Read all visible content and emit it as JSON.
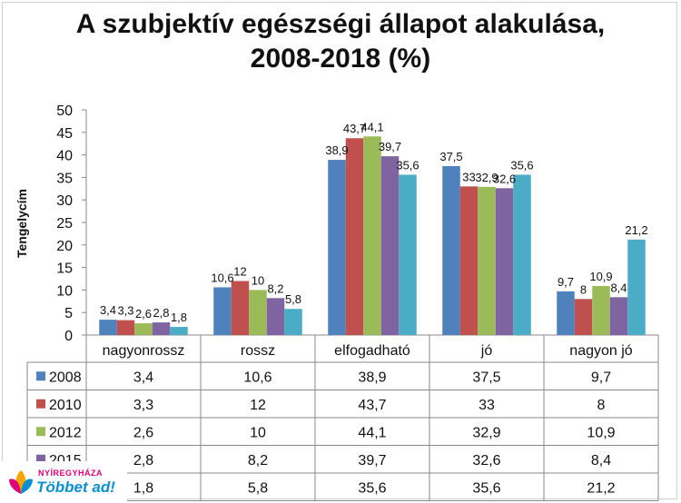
{
  "chart_data": {
    "type": "bar",
    "title": "A szubjektív egészségi állapot alakulása,",
    "subtitle": "2008-2018 (%)",
    "ylabel": "Tengelycím",
    "xlabel": "",
    "ylim": [
      0,
      50
    ],
    "yticks": [
      "0",
      "5",
      "10",
      "15",
      "20",
      "25",
      "30",
      "35",
      "40",
      "45",
      "50"
    ],
    "grid": false,
    "legend_placement": "data-table-left",
    "categories": [
      "nagyonrossz",
      "rossz",
      "elfogadható",
      "jó",
      "nagyon jó"
    ],
    "series": [
      {
        "name": "2008",
        "color": "#4f81bd",
        "values": [
          3.4,
          10.6,
          38.9,
          37.5,
          9.7
        ],
        "labels": [
          "3,4",
          "10,6",
          "38,9",
          "37,5",
          "9,7"
        ]
      },
      {
        "name": "2010",
        "color": "#c0504d",
        "values": [
          3.3,
          12,
          43.7,
          33,
          8
        ],
        "labels": [
          "3,3",
          "12",
          "43,7",
          "33",
          "8"
        ]
      },
      {
        "name": "2012",
        "color": "#9bbb59",
        "values": [
          2.6,
          10,
          44.1,
          32.9,
          10.9
        ],
        "labels": [
          "2,6",
          "10",
          "44,1",
          "32,9",
          "10,9"
        ]
      },
      {
        "name": "2015",
        "color": "#8064a2",
        "values": [
          2.8,
          8.2,
          39.7,
          32.6,
          8.4
        ],
        "labels": [
          "2,8",
          "8,2",
          "39,7",
          "32,6",
          "8,4"
        ]
      },
      {
        "name": "",
        "color": "#4bacc6",
        "values": [
          1.8,
          5.8,
          35.6,
          35.6,
          21.2
        ],
        "labels": [
          "1,8",
          "5,8",
          "35,6",
          "35,6",
          "21,2"
        ]
      }
    ]
  },
  "logo": {
    "small_text": "NYÍREGYHÁZA",
    "big_text": "Többet ad!",
    "colors": [
      "#e2007a",
      "#f7a600",
      "#0a8fd0"
    ]
  }
}
